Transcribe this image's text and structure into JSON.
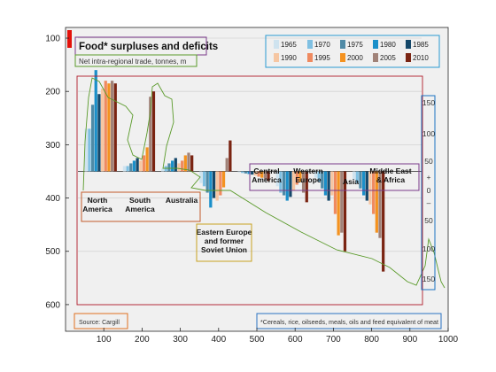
{
  "chart_data": {
    "type": "bar",
    "title": "Food* surpluses and deficits",
    "subtitle": "Net intra-regional trade, tonnes, m",
    "source": "Source: Cargill",
    "footnote": "*Cereals, rice, oilseeds, meals, oils and feed equivalent of meat",
    "xlim": [
      0,
      1000
    ],
    "ylim": [
      650,
      80
    ],
    "x_ticks": [
      "100",
      "200",
      "300",
      "400",
      "500",
      "600",
      "700",
      "800",
      "900",
      "1000"
    ],
    "y_ticks": [
      "100",
      "200",
      "300",
      "400",
      "500",
      "600"
    ],
    "right_axis": {
      "tick_labels": [
        "150",
        "100",
        "50",
        "+",
        "0",
        "–",
        "50",
        "100",
        "150"
      ]
    },
    "legend_years": [
      "1965",
      "1970",
      "1975",
      "1980",
      "1985",
      "1990",
      "1995",
      "2000",
      "2005",
      "2010"
    ],
    "series_colors": [
      "#cfe3ef",
      "#7fc0e2",
      "#4f8aa6",
      "#1a8fc9",
      "#15486a",
      "#f6c6a2",
      "#ef8a60",
      "#f4921f",
      "#a08278",
      "#7a2412"
    ],
    "regions": [
      {
        "name": "North America",
        "label_lines": [
          "North",
          "America"
        ],
        "values": [
          270,
          270,
          225,
          160,
          205,
          195,
          180,
          185,
          180,
          185
        ]
      },
      {
        "name": "South America",
        "label_lines": [
          "South",
          "America"
        ],
        "values": [
          340,
          340,
          335,
          330,
          325,
          330,
          320,
          305,
          210,
          200
        ]
      },
      {
        "name": "Australia",
        "label_lines": [
          "Australia"
        ],
        "values": [
          345,
          340,
          335,
          330,
          325,
          335,
          330,
          320,
          315,
          320
        ]
      },
      {
        "name": "Eastern Europe and former Soviet Union",
        "label_lines": [
          "Eastern Europe",
          "and former",
          "Soviet Union"
        ],
        "values": [
          372,
          378,
          390,
          418,
          400,
          405,
          395,
          380,
          325,
          292
        ]
      },
      {
        "name": "Central America",
        "label_lines": [
          "Central",
          "America"
        ],
        "values": [
          352,
          353,
          354,
          355,
          356,
          358,
          360,
          362,
          365,
          368
        ]
      },
      {
        "name": "Western Europe",
        "label_lines": [
          "Western",
          "Europe"
        ],
        "values": [
          378,
          390,
          395,
          405,
          398,
          385,
          375,
          370,
          390,
          408
        ]
      },
      {
        "name": "Asia",
        "label_lines": [
          "Asia"
        ],
        "values": [
          362,
          370,
          382,
          395,
          405,
          395,
          430,
          470,
          465,
          500
        ]
      },
      {
        "name": "Middle East & Africa",
        "label_lines": [
          "Middle East",
          "& Africa"
        ],
        "values": [
          366,
          372,
          382,
          395,
          405,
          412,
          430,
          465,
          475,
          538
        ]
      }
    ]
  }
}
